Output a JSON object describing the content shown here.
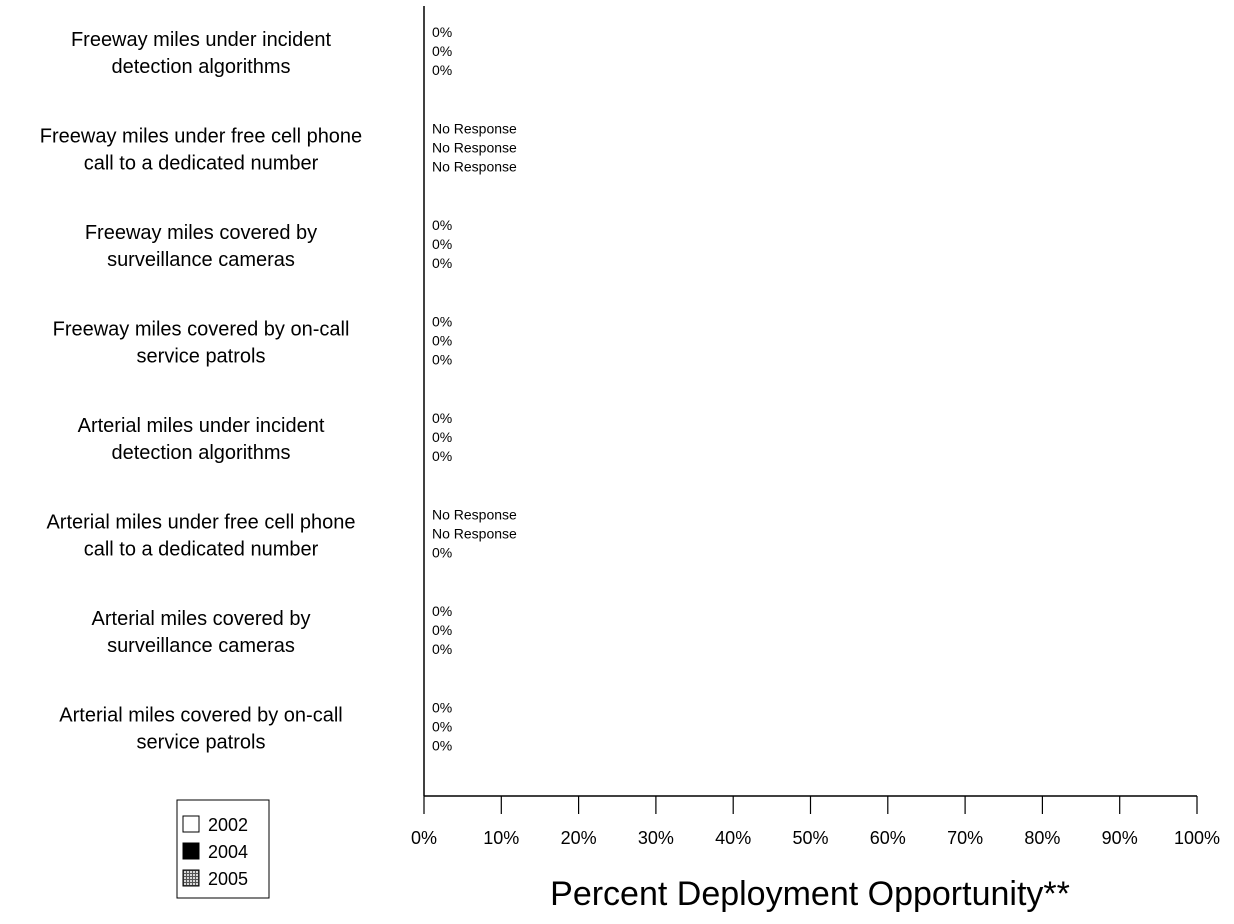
{
  "chart_data": {
    "type": "bar",
    "orientation": "horizontal",
    "xlabel": "Percent Deployment Opportunity**",
    "xlim": [
      0,
      100
    ],
    "x_ticks": [
      "0%",
      "10%",
      "20%",
      "30%",
      "40%",
      "50%",
      "60%",
      "70%",
      "80%",
      "90%",
      "100%"
    ],
    "categories": [
      {
        "line1": "Freeway miles under incident",
        "line2": "detection algorithms"
      },
      {
        "line1": "Freeway miles under free cell phone",
        "line2": "call to a dedicated number"
      },
      {
        "line1": "Freeway miles covered by",
        "line2": "surveillance cameras"
      },
      {
        "line1": "Freeway miles covered by on-call",
        "line2": "service patrols"
      },
      {
        "line1": "Arterial miles under incident",
        "line2": "detection algorithms"
      },
      {
        "line1": "Arterial miles under free cell phone",
        "line2": "call to a dedicated number"
      },
      {
        "line1": "Arterial miles covered by",
        "line2": "surveillance cameras"
      },
      {
        "line1": "Arterial miles covered by on-call",
        "line2": "service patrols"
      }
    ],
    "series": [
      {
        "name": "2002",
        "color": "#ffffff",
        "values": [
          0,
          null,
          0,
          0,
          0,
          null,
          0,
          0
        ],
        "labels": [
          "0%",
          "No Response",
          "0%",
          "0%",
          "0%",
          "No Response",
          "0%",
          "0%"
        ]
      },
      {
        "name": "2004",
        "color": "#000000",
        "values": [
          0,
          null,
          0,
          0,
          0,
          null,
          0,
          0
        ],
        "labels": [
          "0%",
          "No Response",
          "0%",
          "0%",
          "0%",
          "No Response",
          "0%",
          "0%"
        ]
      },
      {
        "name": "2005",
        "color": "#999999",
        "values": [
          0,
          null,
          0,
          0,
          0,
          0,
          0,
          0
        ],
        "labels": [
          "0%",
          "No Response",
          "0%",
          "0%",
          "0%",
          "0%",
          "0%",
          "0%"
        ]
      }
    ],
    "legend": {
      "position": "bottom-left",
      "items": [
        "2002",
        "2004",
        "2005"
      ]
    },
    "grid": false
  }
}
